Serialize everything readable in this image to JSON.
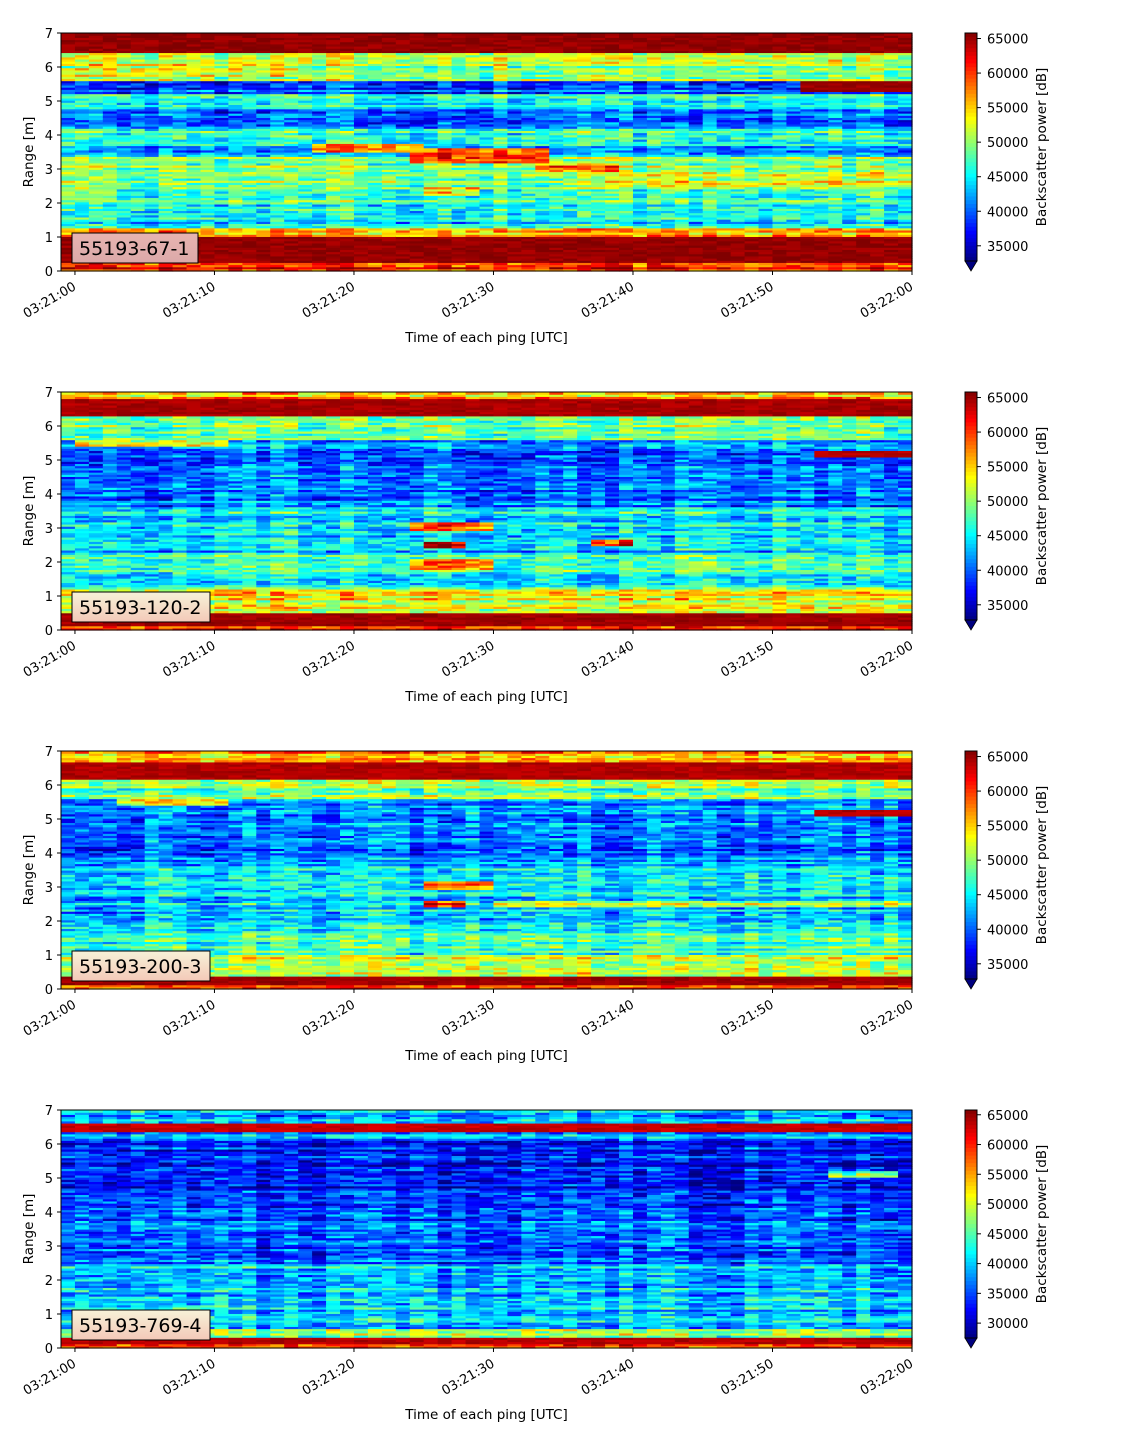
{
  "chart_data": [
    {
      "type": "heatmap",
      "panel_label": "55193-67-1",
      "xlabel": "Time of each ping [UTC]",
      "ylabel": "Range [m]",
      "x_ticks": [
        "03:21:00",
        "03:21:10",
        "03:21:20",
        "03:21:30",
        "03:21:40",
        "03:21:50",
        "03:22:00"
      ],
      "y_ticks": [
        0,
        1,
        2,
        3,
        4,
        5,
        6,
        7
      ],
      "xlim": [
        "03:20:59",
        "03:22:00"
      ],
      "ylim": [
        0,
        7
      ],
      "colormap": "jet",
      "colorbar_label": "Backscatter power [dB]",
      "colorbar_ticks": [
        35000,
        40000,
        45000,
        50000,
        55000,
        60000,
        65000
      ],
      "colorbar_range": [
        32800,
        65800
      ],
      "colorbar_extend": "min",
      "bands": [
        {
          "range": [
            0.0,
            0.25
          ],
          "level": 0.85
        },
        {
          "range": [
            0.25,
            1.0
          ],
          "level": 0.98
        },
        {
          "range": [
            1.0,
            1.25
          ],
          "level": 0.72
        },
        {
          "range": [
            1.25,
            2.0
          ],
          "level": 0.36
        },
        {
          "range": [
            2.0,
            2.6
          ],
          "level": 0.46
        },
        {
          "range": [
            2.6,
            3.4
          ],
          "level": 0.52
        },
        {
          "range": [
            3.4,
            3.7
          ],
          "level": 0.28
        },
        {
          "range": [
            3.7,
            4.2
          ],
          "level": 0.42
        },
        {
          "range": [
            4.2,
            4.8
          ],
          "level": 0.2
        },
        {
          "range": [
            4.8,
            5.2
          ],
          "level": 0.4
        },
        {
          "range": [
            5.2,
            5.6
          ],
          "level": 0.22
        },
        {
          "range": [
            5.6,
            6.4
          ],
          "level": 0.52
        },
        {
          "range": [
            6.4,
            7.0
          ],
          "level": 0.98
        }
      ],
      "features": [
        {
          "t0": 0,
          "t1": 15,
          "range": [
            5.7,
            6.1
          ],
          "level": 0.62
        },
        {
          "t0": 17,
          "t1": 24,
          "range": [
            3.5,
            3.75
          ],
          "level": 0.78
        },
        {
          "t0": 24,
          "t1": 33,
          "range": [
            3.2,
            3.6
          ],
          "level": 0.82
        },
        {
          "t0": 33,
          "t1": 38,
          "range": [
            2.9,
            3.2
          ],
          "level": 0.76
        },
        {
          "t0": 25,
          "t1": 28,
          "range": [
            2.2,
            2.5
          ],
          "level": 0.68
        },
        {
          "t0": 38,
          "t1": 60,
          "range": [
            2.5,
            2.9
          ],
          "level": 0.6
        },
        {
          "t0": 52,
          "t1": 60,
          "range": [
            5.3,
            5.6
          ],
          "level": 0.98
        }
      ]
    },
    {
      "type": "heatmap",
      "panel_label": "55193-120-2",
      "xlabel": "Time of each ping [UTC]",
      "ylabel": "Range [m]",
      "x_ticks": [
        "03:21:00",
        "03:21:10",
        "03:21:20",
        "03:21:30",
        "03:21:40",
        "03:21:50",
        "03:22:00"
      ],
      "y_ticks": [
        0,
        1,
        2,
        3,
        4,
        5,
        6,
        7
      ],
      "xlim": [
        "03:20:59",
        "03:22:00"
      ],
      "ylim": [
        0,
        7
      ],
      "colormap": "jet",
      "colorbar_label": "Backscatter power [dB]",
      "colorbar_ticks": [
        35000,
        40000,
        45000,
        50000,
        55000,
        60000,
        65000
      ],
      "colorbar_range": [
        32800,
        65800
      ],
      "colorbar_extend": "min",
      "bands": [
        {
          "range": [
            0.0,
            0.15
          ],
          "level": 0.88
        },
        {
          "range": [
            0.15,
            0.5
          ],
          "level": 0.97
        },
        {
          "range": [
            0.5,
            1.2
          ],
          "level": 0.62
        },
        {
          "range": [
            1.2,
            2.2
          ],
          "level": 0.42
        },
        {
          "range": [
            2.2,
            3.0
          ],
          "level": 0.32
        },
        {
          "range": [
            3.0,
            3.6
          ],
          "level": 0.38
        },
        {
          "range": [
            3.6,
            4.6
          ],
          "level": 0.26
        },
        {
          "range": [
            4.6,
            5.6
          ],
          "level": 0.24
        },
        {
          "range": [
            5.6,
            6.3
          ],
          "level": 0.48
        },
        {
          "range": [
            6.3,
            6.8
          ],
          "level": 0.96
        },
        {
          "range": [
            6.8,
            7.0
          ],
          "level": 0.7
        }
      ],
      "features": [
        {
          "t0": 24,
          "t1": 29,
          "range": [
            2.9,
            3.2
          ],
          "level": 0.8
        },
        {
          "t0": 24,
          "t1": 29,
          "range": [
            1.8,
            2.1
          ],
          "level": 0.75
        },
        {
          "t0": 25,
          "t1": 27,
          "range": [
            2.4,
            2.6
          ],
          "level": 0.85
        },
        {
          "t0": 37,
          "t1": 39,
          "range": [
            2.5,
            2.7
          ],
          "level": 0.78
        },
        {
          "t0": 53,
          "t1": 60,
          "range": [
            5.1,
            5.25
          ],
          "level": 0.95
        },
        {
          "t0": 0,
          "t1": 10,
          "range": [
            5.4,
            5.6
          ],
          "level": 0.62
        }
      ]
    },
    {
      "type": "heatmap",
      "panel_label": "55193-200-3",
      "xlabel": "Time of each ping [UTC]",
      "ylabel": "Range [m]",
      "x_ticks": [
        "03:21:00",
        "03:21:10",
        "03:21:20",
        "03:21:30",
        "03:21:40",
        "03:21:50",
        "03:22:00"
      ],
      "y_ticks": [
        0,
        1,
        2,
        3,
        4,
        5,
        6,
        7
      ],
      "xlim": [
        "03:20:59",
        "03:22:00"
      ],
      "ylim": [
        0,
        7
      ],
      "colormap": "jet",
      "colorbar_label": "Backscatter power [dB]",
      "colorbar_ticks": [
        35000,
        40000,
        45000,
        50000,
        55000,
        60000,
        65000
      ],
      "colorbar_range": [
        32800,
        65800
      ],
      "colorbar_extend": "min",
      "bands": [
        {
          "range": [
            0.0,
            0.15
          ],
          "level": 0.86
        },
        {
          "range": [
            0.15,
            0.4
          ],
          "level": 0.97
        },
        {
          "range": [
            0.4,
            1.0
          ],
          "level": 0.6
        },
        {
          "range": [
            1.0,
            2.0
          ],
          "level": 0.42
        },
        {
          "range": [
            2.0,
            3.0
          ],
          "level": 0.34
        },
        {
          "range": [
            3.0,
            3.6
          ],
          "level": 0.36
        },
        {
          "range": [
            3.6,
            4.8
          ],
          "level": 0.24
        },
        {
          "range": [
            4.8,
            5.6
          ],
          "level": 0.24
        },
        {
          "range": [
            5.6,
            6.2
          ],
          "level": 0.5
        },
        {
          "range": [
            6.2,
            6.7
          ],
          "level": 0.95
        },
        {
          "range": [
            6.7,
            7.0
          ],
          "level": 0.72
        }
      ],
      "features": [
        {
          "t0": 25,
          "t1": 29,
          "range": [
            2.9,
            3.2
          ],
          "level": 0.75
        },
        {
          "t0": 25,
          "t1": 27,
          "range": [
            2.4,
            2.6
          ],
          "level": 0.85
        },
        {
          "t0": 30,
          "t1": 60,
          "range": [
            2.4,
            2.6
          ],
          "level": 0.55
        },
        {
          "t0": 53,
          "t1": 60,
          "range": [
            5.1,
            5.25
          ],
          "level": 0.95
        },
        {
          "t0": 3,
          "t1": 10,
          "range": [
            5.4,
            5.6
          ],
          "level": 0.65
        }
      ]
    },
    {
      "type": "heatmap",
      "panel_label": "55193-769-4",
      "xlabel": "Time of each ping [UTC]",
      "ylabel": "Range [m]",
      "x_ticks": [
        "03:21:00",
        "03:21:10",
        "03:21:20",
        "03:21:30",
        "03:21:40",
        "03:21:50",
        "03:22:00"
      ],
      "y_ticks": [
        0,
        1,
        2,
        3,
        4,
        5,
        6,
        7
      ],
      "xlim": [
        "03:20:59",
        "03:22:00"
      ],
      "ylim": [
        0,
        7
      ],
      "colormap": "jet",
      "colorbar_label": "Backscatter power [dB]",
      "colorbar_ticks": [
        30000,
        35000,
        40000,
        45000,
        50000,
        55000,
        60000,
        65000
      ],
      "colorbar_range": [
        27500,
        65800
      ],
      "colorbar_extend": "min",
      "bands": [
        {
          "range": [
            0.0,
            0.15
          ],
          "level": 0.78
        },
        {
          "range": [
            0.15,
            0.35
          ],
          "level": 0.95
        },
        {
          "range": [
            0.35,
            0.6
          ],
          "level": 0.52
        },
        {
          "range": [
            0.6,
            2.5
          ],
          "level": 0.32
        },
        {
          "range": [
            2.5,
            4.2
          ],
          "level": 0.2
        },
        {
          "range": [
            4.2,
            6.2
          ],
          "level": 0.14
        },
        {
          "range": [
            6.2,
            6.38
          ],
          "level": 0.28
        },
        {
          "range": [
            6.38,
            6.6
          ],
          "level": 0.93
        },
        {
          "range": [
            6.6,
            7.0
          ],
          "level": 0.3
        }
      ],
      "features": [
        {
          "t0": 54,
          "t1": 58,
          "range": [
            5.05,
            5.2
          ],
          "level": 0.55
        }
      ]
    }
  ]
}
